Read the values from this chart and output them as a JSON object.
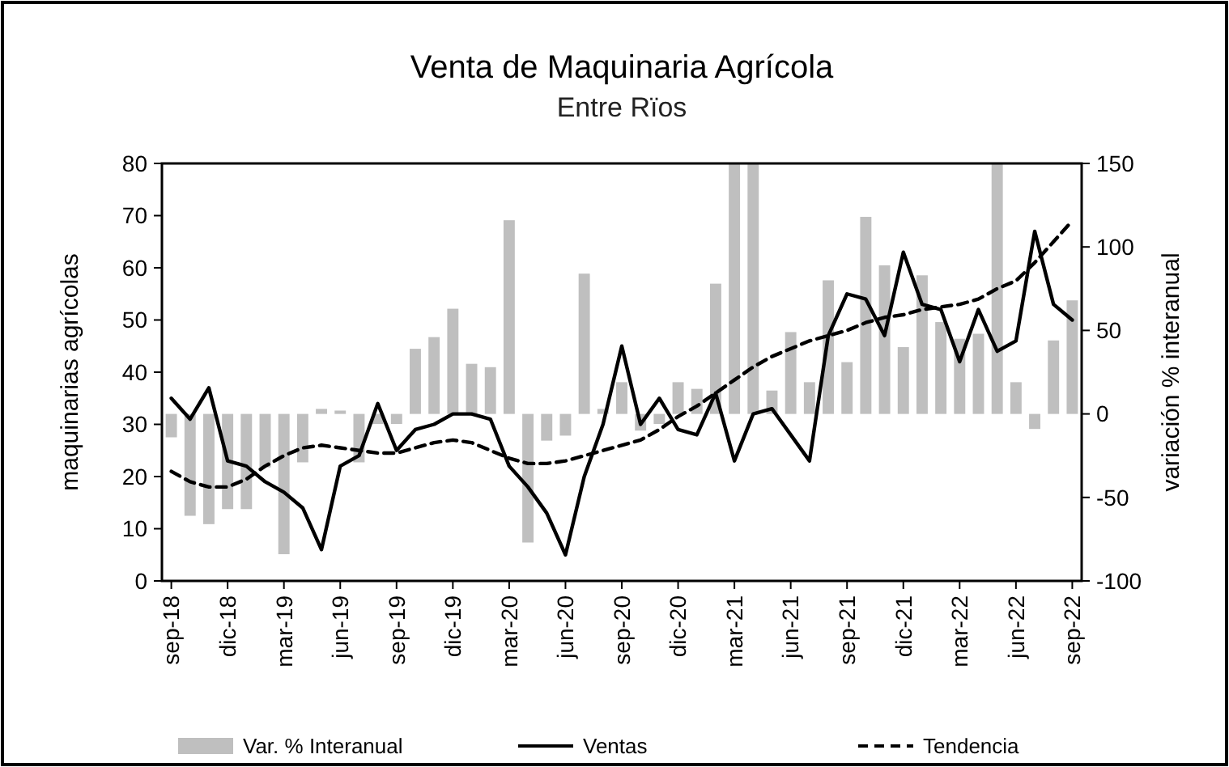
{
  "chart_data": {
    "type": "line",
    "title": "Venta de Maquinaria Agrícola",
    "subtitle": "Entre Rïos",
    "ylabel": "maquinarias agrícolas",
    "y2label": "variación % interanual",
    "categories": [
      "sep-18",
      null,
      null,
      "dic-18",
      null,
      null,
      "mar-19",
      null,
      null,
      "jun-19",
      null,
      null,
      "sep-19",
      null,
      null,
      "dic-19",
      null,
      null,
      "mar-20",
      null,
      null,
      "jun-20",
      null,
      null,
      "sep-20",
      null,
      null,
      "dic-20",
      null,
      null,
      "mar-21",
      null,
      null,
      "jun-21",
      null,
      null,
      "sep-21",
      null,
      null,
      "dic-21",
      null,
      null,
      "mar-22",
      null,
      null,
      "jun-22",
      null,
      null,
      "sep-22"
    ],
    "series": [
      {
        "name": "Var. % Interanual",
        "type": "bar",
        "axis": "y2",
        "color": "#bfbfbf",
        "values": [
          -14,
          -61,
          -66,
          -57,
          -57,
          -32,
          -84,
          -29,
          3,
          2,
          -29,
          -6,
          -6,
          39,
          46,
          63,
          30,
          28,
          116,
          -77,
          -16,
          -13,
          84,
          3,
          19,
          -10,
          -6,
          19,
          15,
          78,
          150,
          150,
          14,
          49,
          19,
          80,
          31,
          118,
          89,
          40,
          83,
          55,
          45,
          48,
          150,
          19,
          -9,
          44,
          68
        ]
      },
      {
        "name": "Ventas",
        "color": "#000000",
        "line_style": "solid",
        "values": [
          35,
          31,
          37,
          23,
          22,
          19,
          17,
          14,
          6,
          22,
          24,
          34,
          25,
          29,
          30,
          32,
          32,
          31,
          22,
          18,
          13,
          5,
          20,
          30,
          45,
          30,
          35,
          29,
          28,
          36,
          23,
          32,
          33,
          28,
          23,
          47,
          55,
          54,
          47,
          63,
          53,
          52,
          42,
          52,
          44,
          46,
          67,
          53,
          50
        ]
      },
      {
        "name": "Tendencia",
        "color": "#000000",
        "line_style": "dashed",
        "values": [
          21,
          19,
          18,
          18,
          19.5,
          22,
          24,
          25.5,
          26,
          25.5,
          25,
          24.5,
          24.5,
          25.5,
          26.5,
          27,
          26.5,
          25,
          23.5,
          22.5,
          22.5,
          23,
          24,
          25,
          26,
          27,
          29,
          31.5,
          33.5,
          36,
          38.5,
          41,
          43,
          44.5,
          46,
          47,
          48,
          49.5,
          50.5,
          51,
          52,
          52.5,
          53,
          54,
          56,
          57.5,
          61,
          65,
          69
        ]
      }
    ],
    "ylim": [
      0,
      80
    ],
    "yticks": [
      0,
      10,
      20,
      30,
      40,
      50,
      60,
      70,
      80
    ],
    "y2lim": [
      -100,
      150
    ],
    "y2ticks": [
      -100,
      -50,
      0,
      50,
      100,
      150
    ],
    "grid": false,
    "legend": "bottom"
  }
}
